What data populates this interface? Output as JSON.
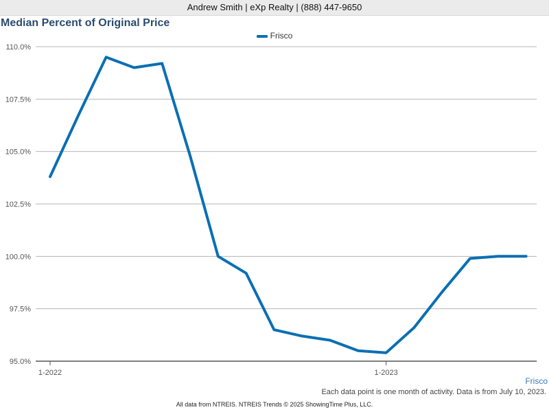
{
  "header": {
    "contact": "Andrew Smith | eXp Realty | (888) 447-9650"
  },
  "footer": {
    "series_link": "Frisco",
    "note": "Each data point is one month of activity. Data is from July 10, 2023.",
    "source": "All data from NTREIS. NTREIS Trends © 2025 ShowingTime Plus, LLC."
  },
  "chart_data": {
    "type": "line",
    "title": "Median Percent of Original Price",
    "xlabel": "",
    "ylabel": "",
    "x": [
      "1-2022",
      "2-2022",
      "3-2022",
      "4-2022",
      "5-2022",
      "6-2022",
      "7-2022",
      "8-2022",
      "9-2022",
      "10-2022",
      "11-2022",
      "12-2022",
      "1-2023",
      "2-2023",
      "3-2023",
      "4-2023",
      "5-2023",
      "6-2023"
    ],
    "x_tick_labels": [
      "1-2022",
      "1-2023"
    ],
    "series": [
      {
        "name": "Frisco",
        "color": "#0a6fb4",
        "values": [
          103.8,
          106.7,
          109.5,
          109.0,
          109.2,
          104.8,
          100.0,
          99.2,
          96.5,
          96.2,
          96.0,
          95.5,
          95.4,
          96.6,
          98.3,
          99.9,
          100.0,
          100.0
        ]
      }
    ],
    "y_ticks": [
      "95.0%",
      "97.5%",
      "100.0%",
      "102.5%",
      "105.0%",
      "107.5%",
      "110.0%"
    ],
    "ylim": [
      95,
      110
    ],
    "grid": true,
    "legend": "top-center"
  }
}
